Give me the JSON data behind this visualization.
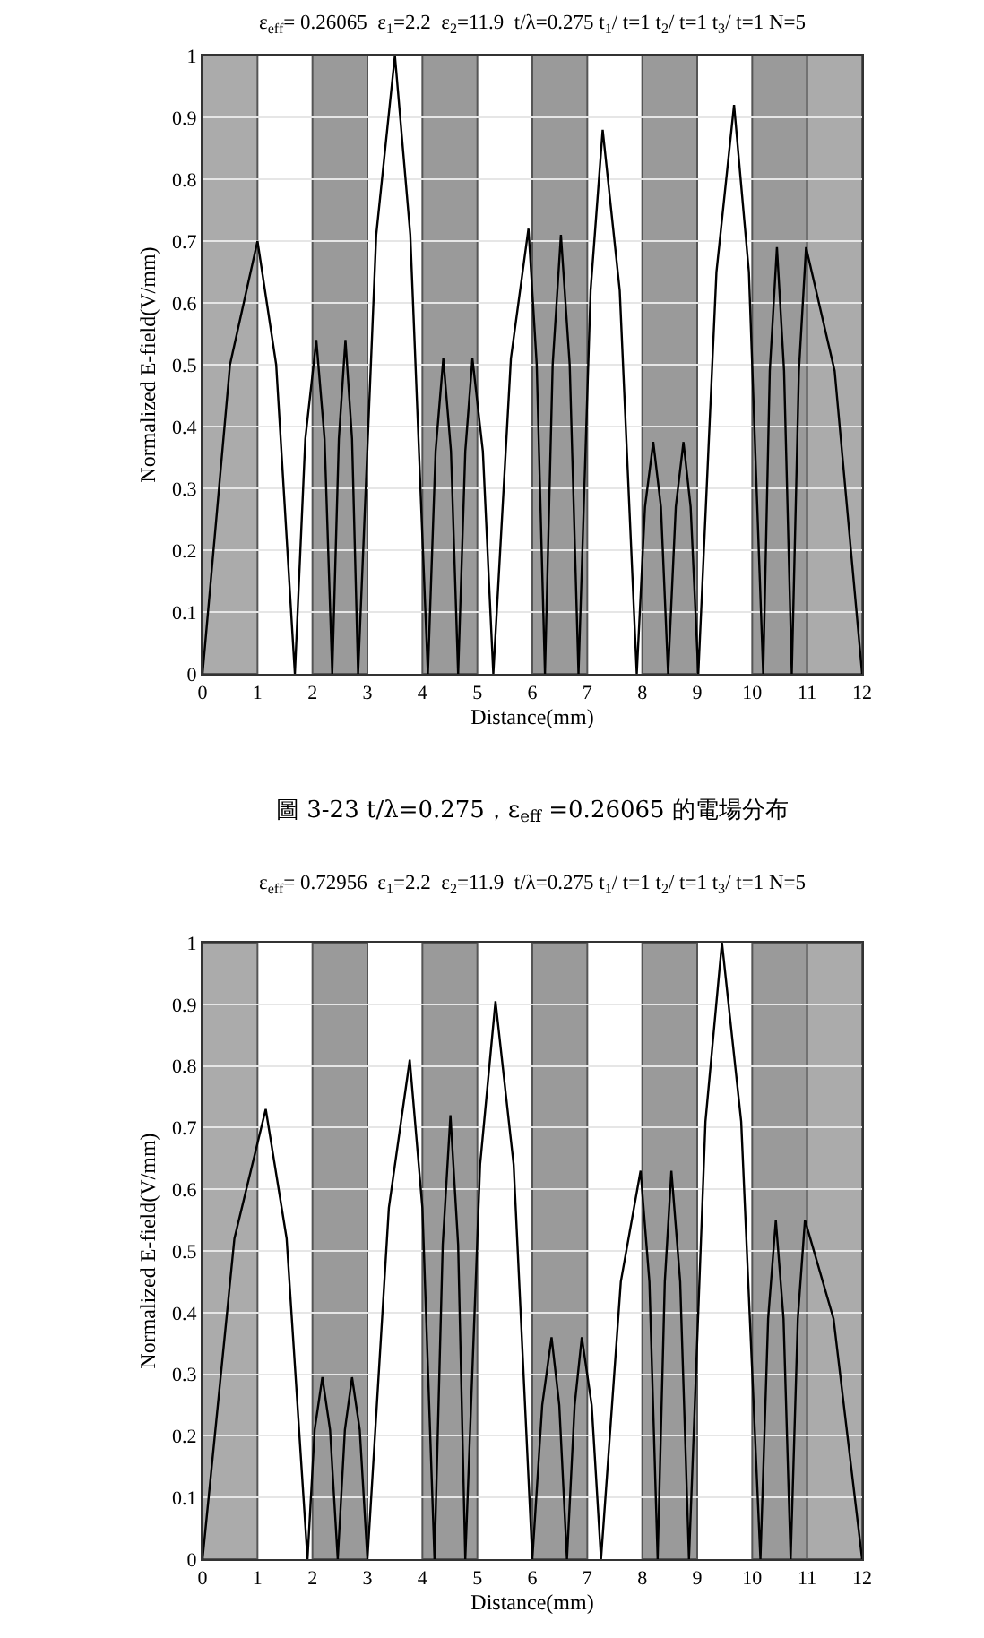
{
  "chart_data": [
    {
      "type": "line",
      "title": "ε$_{eff}$= 0.26065  ε$_{1}$=2.2  ε$_{2}$=11.9  t/λ=0.275 t$_{1}$/ t=1 t$_{2}$/ t=1 t$_{3}$/ t=1 N=5",
      "xlabel": "Distance(mm)",
      "ylabel": "Normalized E-field(V/mm)",
      "annotations": [
        "圖 3-23 t/λ=0.275，ε$_{eff}$ =0.26065 的電場分布"
      ],
      "x": [
        0,
        0.5,
        1.0,
        1.34,
        1.68,
        1.87,
        2.07,
        2.22,
        2.36,
        2.48,
        2.6,
        2.72,
        2.83,
        3.16,
        3.5,
        3.78,
        4.1,
        4.24,
        4.38,
        4.52,
        4.65,
        4.78,
        4.91,
        5.1,
        5.29,
        5.61,
        5.93,
        6.08,
        6.23,
        6.37,
        6.52,
        6.68,
        6.84,
        7.06,
        7.28,
        7.59,
        7.9,
        8.05,
        8.2,
        8.34,
        8.47,
        8.61,
        8.75,
        8.88,
        9.02,
        9.35,
        9.67,
        9.94,
        10.2,
        10.32,
        10.45,
        10.58,
        10.72,
        10.85,
        10.98,
        11.5,
        12
      ],
      "series": [
        {
          "color": "#000000",
          "values": [
            0,
            0.5,
            0.7,
            0.5,
            0,
            0.38,
            0.54,
            0.38,
            0,
            0.38,
            0.54,
            0.38,
            0,
            0.71,
            1.0,
            0.71,
            0,
            0.36,
            0.51,
            0.36,
            0,
            0.36,
            0.51,
            0.36,
            0,
            0.51,
            0.72,
            0.5,
            0,
            0.5,
            0.71,
            0.5,
            0,
            0.62,
            0.88,
            0.62,
            0,
            0.27,
            0.375,
            0.27,
            0,
            0.27,
            0.375,
            0.27,
            0,
            0.65,
            0.92,
            0.65,
            0,
            0.49,
            0.69,
            0.49,
            0,
            0.49,
            0.69,
            0.49,
            0
          ]
        }
      ],
      "xlim": [
        0,
        12
      ],
      "ylim": [
        0,
        1
      ],
      "xticks": [
        0,
        1,
        2,
        3,
        4,
        5,
        6,
        7,
        8,
        9,
        10,
        11,
        12
      ],
      "yticks": [
        0,
        0.1,
        0.2,
        0.3,
        0.4,
        0.5,
        0.6,
        0.7,
        0.8,
        0.9,
        1
      ],
      "grid": "y",
      "marker": "none",
      "line_style": "solid",
      "bands": [
        {
          "axis": "x",
          "from": 0,
          "to": 1,
          "color": "#ababab"
        },
        {
          "axis": "x",
          "from": 2,
          "to": 3,
          "color": "#9a9a9a"
        },
        {
          "axis": "x",
          "from": 4,
          "to": 5,
          "color": "#9a9a9a"
        },
        {
          "axis": "x",
          "from": 6,
          "to": 7,
          "color": "#9a9a9a"
        },
        {
          "axis": "x",
          "from": 8,
          "to": 9,
          "color": "#9a9a9a"
        },
        {
          "axis": "x",
          "from": 10,
          "to": 11,
          "color": "#9a9a9a"
        },
        {
          "axis": "x",
          "from": 11,
          "to": 12,
          "color": "#ababab"
        }
      ]
    },
    {
      "type": "line",
      "title": "ε$_{eff}$= 0.72956  ε$_{1}$=2.2  ε$_{2}$=11.9  t/λ=0.275 t$_{1}$/ t=1 t$_{2}$/ t=1 t$_{3}$/ t=1 N=5",
      "xlabel": "Distance(mm)",
      "ylabel": "Normalized E-field(V/mm)",
      "x": [
        0,
        0.58,
        1.15,
        1.53,
        1.91,
        2.04,
        2.18,
        2.32,
        2.46,
        2.59,
        2.72,
        2.86,
        3.0,
        3.39,
        3.77,
        4.0,
        4.22,
        4.37,
        4.51,
        4.65,
        4.78,
        5.05,
        5.33,
        5.66,
        6.0,
        6.18,
        6.35,
        6.49,
        6.63,
        6.77,
        6.9,
        7.08,
        7.25,
        7.61,
        7.97,
        8.13,
        8.28,
        8.41,
        8.53,
        8.69,
        8.85,
        9.15,
        9.45,
        9.8,
        10.15,
        10.29,
        10.43,
        10.57,
        10.7,
        10.83,
        10.96,
        11.48,
        12
      ],
      "series": [
        {
          "color": "#000000",
          "values": [
            0,
            0.52,
            0.73,
            0.52,
            0,
            0.21,
            0.295,
            0.21,
            0,
            0.21,
            0.295,
            0.21,
            0,
            0.57,
            0.81,
            0.57,
            0,
            0.51,
            0.72,
            0.51,
            0,
            0.64,
            0.905,
            0.64,
            0,
            0.25,
            0.36,
            0.25,
            0,
            0.25,
            0.36,
            0.25,
            0,
            0.45,
            0.63,
            0.45,
            0,
            0.45,
            0.63,
            0.45,
            0,
            0.71,
            1.0,
            0.71,
            0,
            0.39,
            0.55,
            0.39,
            0,
            0.39,
            0.55,
            0.39,
            0
          ]
        }
      ],
      "xlim": [
        0,
        12
      ],
      "ylim": [
        0,
        1
      ],
      "xticks": [
        0,
        1,
        2,
        3,
        4,
        5,
        6,
        7,
        8,
        9,
        10,
        11,
        12
      ],
      "yticks": [
        0,
        0.1,
        0.2,
        0.3,
        0.4,
        0.5,
        0.6,
        0.7,
        0.8,
        0.9,
        1
      ],
      "grid": "y",
      "marker": "none",
      "line_style": "solid",
      "bands": [
        {
          "axis": "x",
          "from": 0,
          "to": 1,
          "color": "#ababab"
        },
        {
          "axis": "x",
          "from": 2,
          "to": 3,
          "color": "#9a9a9a"
        },
        {
          "axis": "x",
          "from": 4,
          "to": 5,
          "color": "#9a9a9a"
        },
        {
          "axis": "x",
          "from": 6,
          "to": 7,
          "color": "#9a9a9a"
        },
        {
          "axis": "x",
          "from": 8,
          "to": 9,
          "color": "#9a9a9a"
        },
        {
          "axis": "x",
          "from": 10,
          "to": 11,
          "color": "#9a9a9a"
        },
        {
          "axis": "x",
          "from": 11,
          "to": 12,
          "color": "#ababab"
        }
      ]
    }
  ]
}
